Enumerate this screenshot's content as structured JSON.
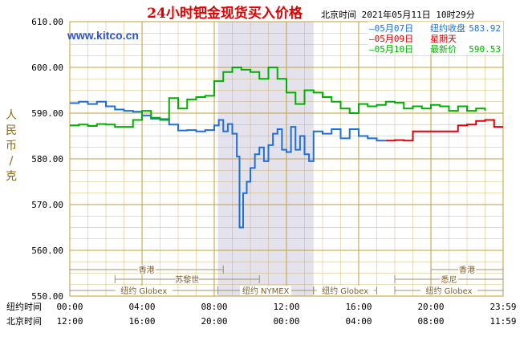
{
  "chart_data": {
    "type": "line",
    "title": "24小时钯金现货买入价格",
    "header_time": "北京时间  2021年05月11日 10时29分",
    "watermark": "www.kitco.cn",
    "ylabel": "人民币/克",
    "ylim": [
      550,
      610
    ],
    "yticks": [
      "610.00",
      "600.00",
      "590.00",
      "580.00",
      "570.00",
      "560.00",
      "550.00"
    ],
    "x_row_label_ny": "纽约时间",
    "x_row_label_bj": "北京时间",
    "xticks_ny": [
      "00:00",
      "04:00",
      "08:00",
      "12:00",
      "16:00",
      "20:00",
      "23:59"
    ],
    "xticks_bj": [
      "12:00",
      "16:00",
      "20:00",
      "00:00",
      "04:00",
      "08:00",
      "11:59"
    ],
    "x_range_hours": [
      0,
      24
    ],
    "grid": true,
    "legend_position": "top-right",
    "colors": {
      "blue": "#1e6fd9",
      "red": "#e00000",
      "green": "#00b000",
      "grid": "#c0a040",
      "frame": "#8b6914",
      "band": "#e4e2ec",
      "title": "#e00000",
      "link": "#2f54c8"
    },
    "legend": [
      {
        "date": "—05月07日",
        "label": "纽约收盘",
        "value": "583.92",
        "color": "#1e6fd9"
      },
      {
        "date": "—05月09日",
        "label": "星期天",
        "value": "",
        "color": "#e00000"
      },
      {
        "date": "—05月10日",
        "label": "最新价",
        "value": "590.53",
        "color": "#00b000"
      }
    ],
    "sessions": {
      "hongkong": "香港",
      "paris": "苏黎世",
      "nyglobex": "纽约 Globex",
      "nymex": "纽约 NYMEX",
      "sydney": "悉尼"
    },
    "series": [
      {
        "color": "#1e6fd9",
        "x": [
          0,
          0.5,
          1,
          1.5,
          2,
          2.5,
          3,
          3.5,
          4,
          4.5,
          5,
          5.5,
          6,
          6.5,
          7,
          7.5,
          8,
          8.25,
          8.5,
          8.75,
          9,
          9.25,
          9.4,
          9.6,
          9.8,
          10,
          10.25,
          10.5,
          10.75,
          11,
          11.25,
          11.5,
          11.75,
          12,
          12.25,
          12.5,
          12.75,
          13,
          13.25,
          13.5,
          14,
          14.5,
          15,
          15.5,
          16,
          16.5,
          17,
          17.5
        ],
        "values": [
          592.2,
          592.5,
          592,
          592.5,
          591.5,
          590.8,
          590.5,
          590.3,
          589.5,
          588.8,
          588.7,
          587.5,
          586.2,
          586.3,
          586,
          586.3,
          587.3,
          588.5,
          586,
          587.6,
          585.5,
          580.5,
          565,
          572.5,
          575,
          578,
          581,
          582.5,
          579.5,
          583,
          585.5,
          586.5,
          582,
          581.5,
          587,
          582,
          585,
          581,
          579.5,
          586,
          585.5,
          586.5,
          584.5,
          586.5,
          585,
          584.5,
          584,
          584
        ]
      },
      {
        "color": "#e00000",
        "x": [
          17.5,
          18,
          18.5,
          19,
          19.5,
          20,
          20.5,
          21,
          21.5,
          22,
          22.5,
          23,
          23.5,
          24
        ],
        "values": [
          584,
          584.1,
          584,
          586,
          586,
          586,
          586,
          586,
          587.3,
          587.5,
          588.3,
          588.5,
          587,
          587
        ]
      },
      {
        "color": "#00b000",
        "x": [
          0,
          0.5,
          1,
          1.5,
          2,
          2.5,
          3,
          3.5,
          4,
          4.5,
          5,
          5.5,
          6,
          6.5,
          7,
          7.5,
          8,
          8.5,
          9,
          9.5,
          10,
          10.5,
          11,
          11.5,
          12,
          12.5,
          13,
          13.5,
          14,
          14.5,
          15,
          15.5,
          16,
          16.5,
          17,
          17.5,
          18,
          18.5,
          19,
          19.5,
          20,
          20.5,
          21,
          21.5,
          22,
          22.5,
          23
        ],
        "values": [
          587.3,
          587.5,
          587.2,
          587.6,
          587.5,
          587,
          587,
          588.5,
          590.5,
          589,
          588.5,
          593.3,
          591,
          593,
          593.5,
          593.8,
          597,
          599,
          600,
          599.5,
          599,
          597.5,
          600,
          597.5,
          594.5,
          592,
          595,
          594.5,
          593.5,
          592.5,
          591,
          590,
          592,
          591.5,
          591.8,
          592.5,
          592.3,
          591,
          591.5,
          591,
          591.8,
          591.5,
          590.5,
          591.5,
          590.5,
          591,
          590.5
        ]
      }
    ]
  }
}
